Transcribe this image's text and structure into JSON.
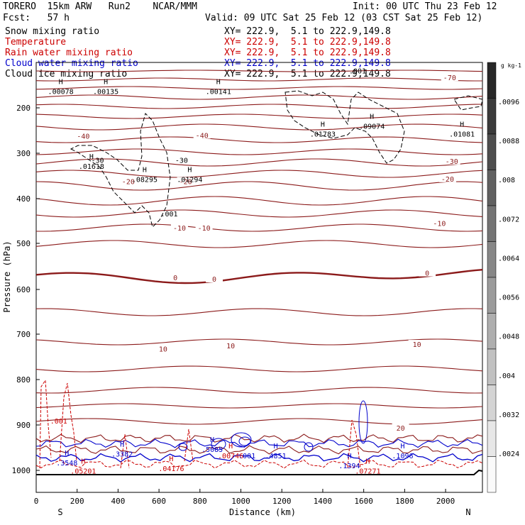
{
  "header": {
    "model": "TORERO  15km ARW   Run2    NCAR/MMM",
    "init": "Init: 00 UTC Thu 23 Feb 12",
    "fcst": "Fcst:   57 h",
    "valid": "Valid: 09 UTC Sat 25 Feb 12 (03 CST Sat 25 Feb 12)"
  },
  "fields": [
    {
      "label": "Snow mixing ratio",
      "xy": "XY= 222.9,  5.1 to 222.9,149.8",
      "color": "#000000"
    },
    {
      "label": "Temperature",
      "xy": "XY= 222.9,  5.1 to 222.9,149.8",
      "color": "#cc0000"
    },
    {
      "label": "Rain water mixing ratio",
      "xy": "XY= 222.9,  5.1 to 222.9,149.8",
      "color": "#cc0000"
    },
    {
      "label": "Cloud water mixing ratio",
      "xy": "XY= 222.9,  5.1 to 222.9,149.8",
      "color": "#0000cc"
    },
    {
      "label": "Cloud ice mixing ratio",
      "xy": "XY= 222.9,  5.1 to 222.9,149.8",
      "color": "#000000"
    }
  ],
  "chart_data": {
    "type": "cross-section",
    "xlabel": "Distance (km)",
    "ylabel": "Pressure (hPa)",
    "xlim": [
      0,
      2180
    ],
    "ylim": [
      1045,
      100
    ],
    "xticks": [
      0,
      200,
      400,
      600,
      800,
      1000,
      1200,
      1400,
      1600,
      1800,
      2000
    ],
    "yticks": [
      200,
      300,
      400,
      500,
      600,
      700,
      800,
      900,
      1000
    ],
    "left_end": "S",
    "right_end": "N",
    "colorbar": {
      "unit": "g kg-1",
      "ticks": [
        ".0024",
        ".0032",
        ".004",
        ".0048",
        ".0056",
        ".0064",
        ".0072",
        ".008",
        ".0088",
        ".0096"
      ]
    },
    "temperature_labels": [
      {
        "text": "-70",
        "x": 2020,
        "p": 133
      },
      {
        "text": "-40",
        "x": 230,
        "p": 262
      },
      {
        "text": "-40",
        "x": 810,
        "p": 260
      },
      {
        "text": "-30",
        "x": 2030,
        "p": 317
      },
      {
        "text": "-20",
        "x": 450,
        "p": 362
      },
      {
        "text": "-20",
        "x": 730,
        "p": 362
      },
      {
        "text": "-20",
        "x": 2010,
        "p": 356
      },
      {
        "text": "-10",
        "x": 700,
        "p": 465
      },
      {
        "text": "-10",
        "x": 820,
        "p": 465
      },
      {
        "text": "-10",
        "x": 1970,
        "p": 455
      },
      {
        "text": "0",
        "x": 680,
        "p": 574
      },
      {
        "text": "0",
        "x": 870,
        "p": 577
      },
      {
        "text": "0",
        "x": 1910,
        "p": 564
      },
      {
        "text": "10",
        "x": 620,
        "p": 732
      },
      {
        "text": "10",
        "x": 950,
        "p": 725
      },
      {
        "text": "10",
        "x": 1860,
        "p": 722
      },
      {
        "text": "20",
        "x": 1780,
        "p": 906
      }
    ],
    "snow_maxima": [
      {
        "text": ".00078",
        "x": 120,
        "p": 163
      },
      {
        "text": ".00135",
        "x": 340,
        "p": 163
      },
      {
        "text": ".00141",
        "x": 890,
        "p": 163
      }
    ],
    "ice_maxima": [
      {
        "text": ".01618",
        "x": 270,
        "p": 328
      },
      {
        "text": ".08295",
        "x": 530,
        "p": 357
      },
      {
        "text": ".01294",
        "x": 750,
        "p": 357
      },
      {
        "text": ".01783",
        "x": 1400,
        "p": 257
      },
      {
        "text": ".09074",
        "x": 1640,
        "p": 240
      },
      {
        "text": ".01081",
        "x": 2080,
        "p": 257
      },
      {
        "text": ".001",
        "x": 650,
        "p": 433
      },
      {
        "text": ".001",
        "x": 1570,
        "p": 118
      },
      {
        "text": "-30",
        "x": 300,
        "p": 315
      },
      {
        "text": "-30",
        "x": 710,
        "p": 315
      }
    ],
    "rain_maxima": [
      {
        "text": ".001",
        "x": 110,
        "p": 891
      },
      {
        "text": ".05201",
        "x": 230,
        "p": 1001
      },
      {
        "text": ".04176",
        "x": 660,
        "p": 995
      },
      {
        "text": ".00746",
        "x": 950,
        "p": 967
      },
      {
        "text": ".07271",
        "x": 1620,
        "p": 1001
      }
    ],
    "cloudwater_maxima": [
      {
        "text": ".3548",
        "x": 150,
        "p": 983
      },
      {
        "text": ".3382",
        "x": 420,
        "p": 963
      },
      {
        "text": ".5085",
        "x": 860,
        "p": 953
      },
      {
        "text": ".4851",
        "x": 1170,
        "p": 967
      },
      {
        "text": ".1394",
        "x": 1530,
        "p": 989
      },
      {
        "text": ".1096",
        "x": 1790,
        "p": 967
      },
      {
        "text": ".001",
        "x": 1030,
        "p": 967
      }
    ]
  }
}
